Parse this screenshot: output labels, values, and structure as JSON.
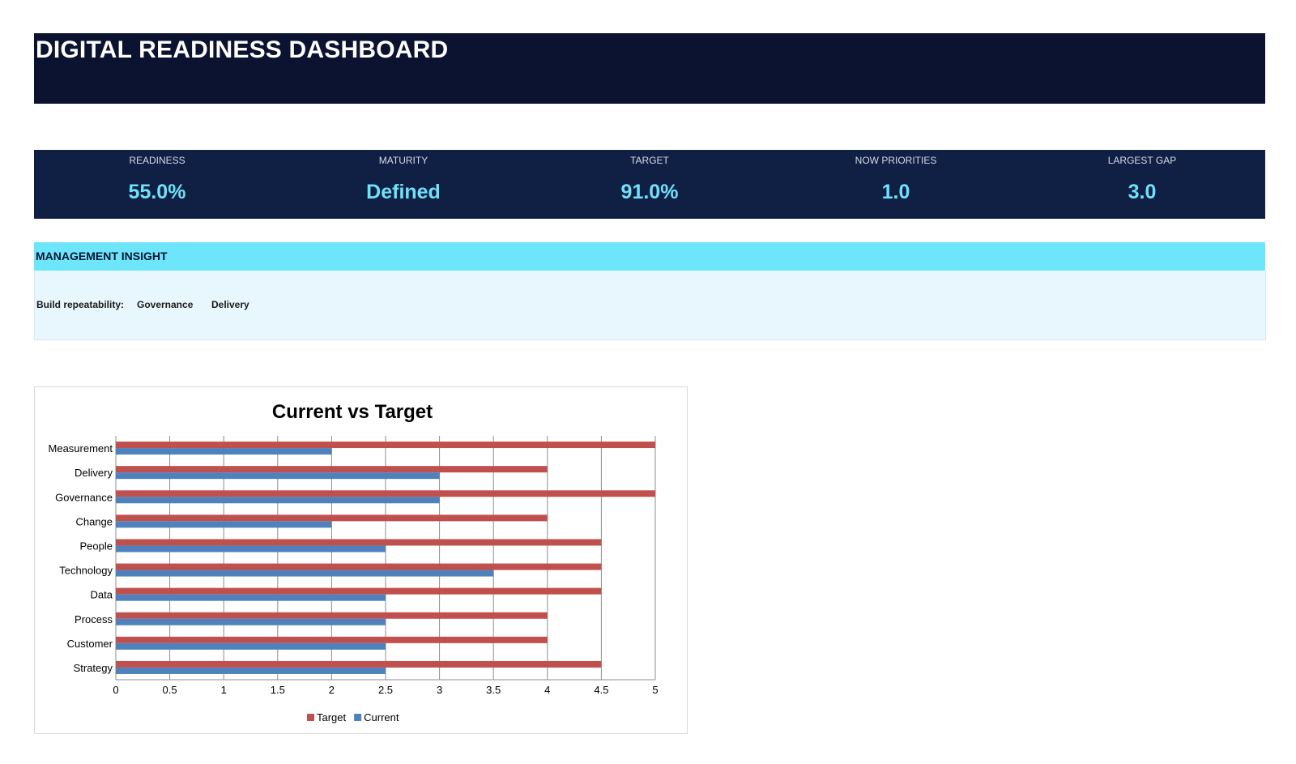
{
  "header": {
    "title": "DIGITAL READINESS DASHBOARD"
  },
  "kpis": [
    {
      "label": "READINESS",
      "value": "55.0%"
    },
    {
      "label": "MATURITY",
      "value": "Defined"
    },
    {
      "label": "TARGET",
      "value": "91.0%"
    },
    {
      "label": "NOW PRIORITIES",
      "value": "1.0"
    },
    {
      "label": "LARGEST GAP",
      "value": "3.0"
    }
  ],
  "insight": {
    "heading": "MANAGEMENT INSIGHT",
    "label": "Build repeatability:",
    "items": [
      "Governance",
      "Delivery"
    ]
  },
  "colors": {
    "header_bg": "#0b1330",
    "kpi_bg": "#101f44",
    "kpi_value": "#6fe1f8",
    "insight_head_bg": "#6de6fb",
    "insight_body_bg": "#e8f7fd"
  },
  "chart_data": {
    "type": "bar",
    "orientation": "horizontal",
    "title": "Current vs Target",
    "categories": [
      "Strategy",
      "Customer",
      "Process",
      "Data",
      "Technology",
      "People",
      "Change",
      "Governance",
      "Delivery",
      "Measurement"
    ],
    "series": [
      {
        "name": "Target",
        "color": "#c0504d",
        "values": [
          4.5,
          4,
          4,
          4.5,
          4.5,
          4.5,
          4,
          5,
          4,
          5
        ]
      },
      {
        "name": "Current",
        "color": "#4f81bd",
        "values": [
          2.5,
          2.5,
          2.5,
          2.5,
          3.5,
          2.5,
          2,
          3,
          3,
          2
        ]
      }
    ],
    "xlim": [
      0,
      5
    ],
    "xticks": [
      "0",
      "0.5",
      "1",
      "1.5",
      "2",
      "2.5",
      "3",
      "3.5",
      "4",
      "4.5",
      "5"
    ],
    "grid": true,
    "legend": "bottom"
  }
}
